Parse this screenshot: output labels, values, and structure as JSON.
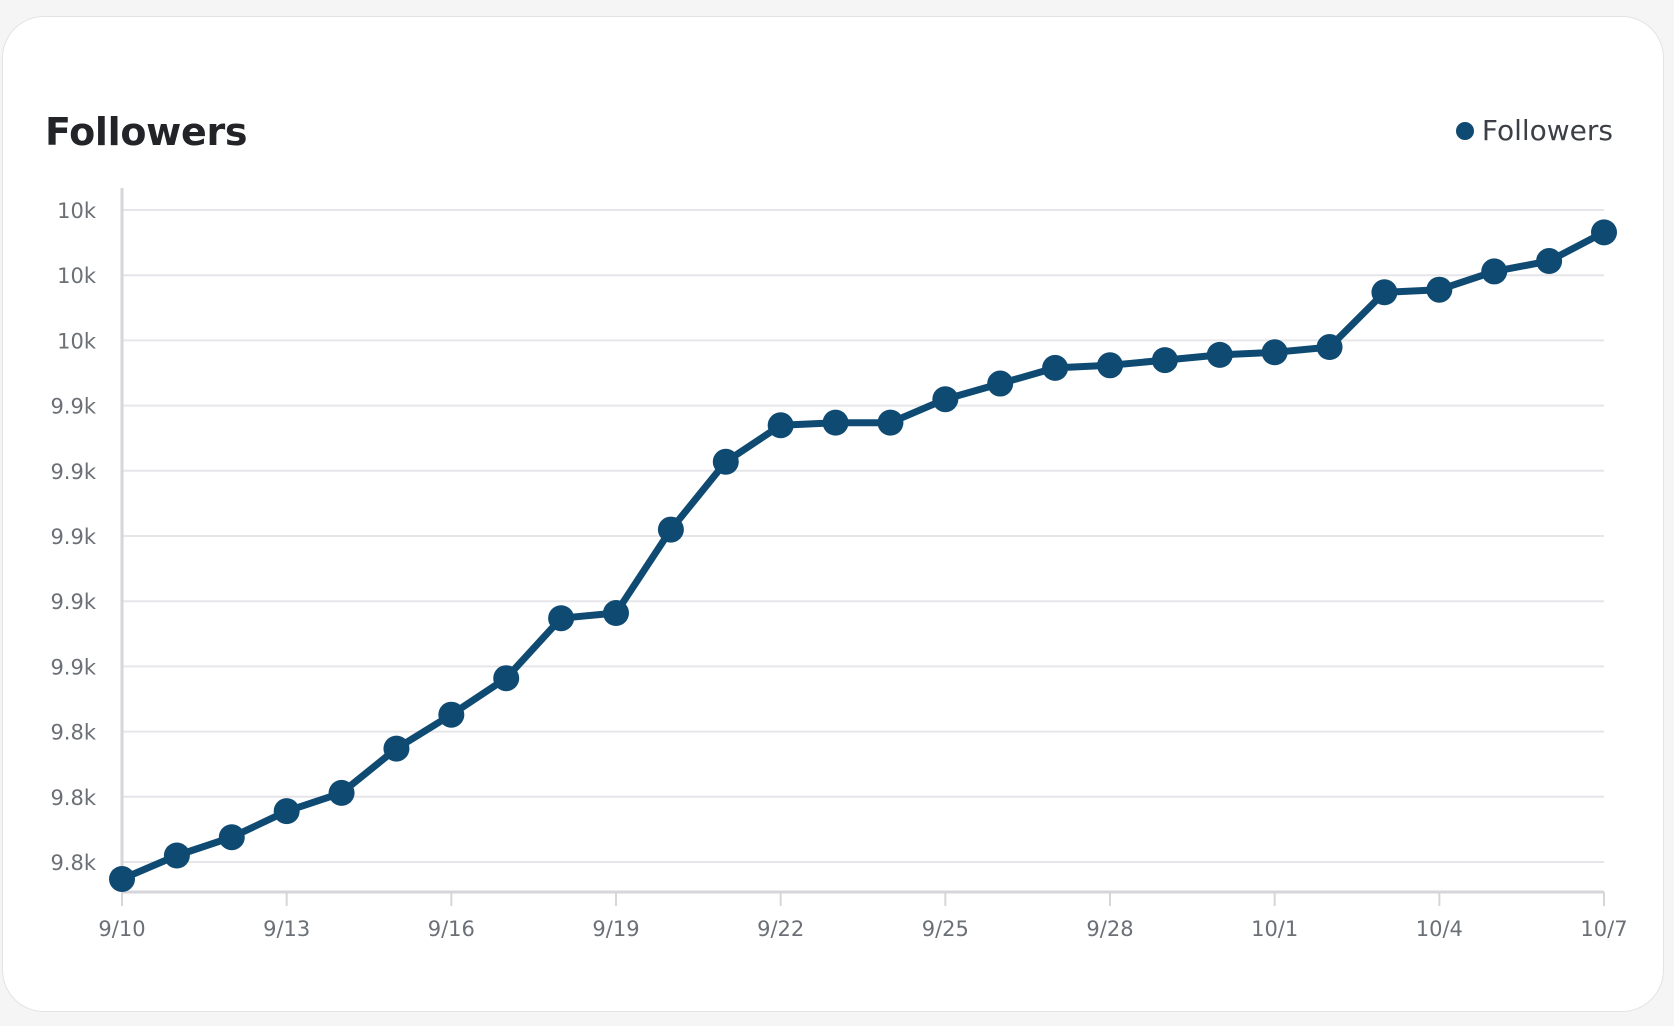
{
  "colors": {
    "series": "#0f4a72",
    "grid": "#e6e6ea",
    "axis": "#d6d6da"
  },
  "chart_data": {
    "type": "line",
    "title": "Followers",
    "legend": {
      "position": "top-right",
      "entries": [
        "Followers"
      ]
    },
    "grid": true,
    "x": [
      "9/10",
      "9/11",
      "9/12",
      "9/13",
      "9/14",
      "9/15",
      "9/16",
      "9/17",
      "9/18",
      "9/19",
      "9/20",
      "9/21",
      "9/22",
      "9/23",
      "9/24",
      "9/25",
      "9/26",
      "9/27",
      "9/28",
      "9/29",
      "9/30",
      "10/1",
      "10/2",
      "10/3",
      "10/4",
      "10/5",
      "10/6",
      "10/7"
    ],
    "x_tick_labels": [
      "9/10",
      "9/13",
      "9/16",
      "9/19",
      "9/22",
      "9/25",
      "9/28",
      "10/1",
      "10/4",
      "10/7"
    ],
    "y_tick_labels": [
      "9.8k",
      "9.8k",
      "9.8k",
      "9.9k",
      "9.9k",
      "9.9k",
      "9.9k",
      "9.9k",
      "10k",
      "10k",
      "10k"
    ],
    "ylim": [
      9750,
      10020
    ],
    "series": [
      {
        "name": "Followers",
        "values": [
          9755,
          9764,
          9771,
          9781,
          9788,
          9805,
          9818,
          9832,
          9855,
          9857,
          9889,
          9915,
          9929,
          9930,
          9930,
          9939,
          9945,
          9951,
          9952,
          9954,
          9956,
          9957,
          9959,
          9980,
          9981,
          9988,
          9992,
          10003
        ]
      }
    ]
  }
}
